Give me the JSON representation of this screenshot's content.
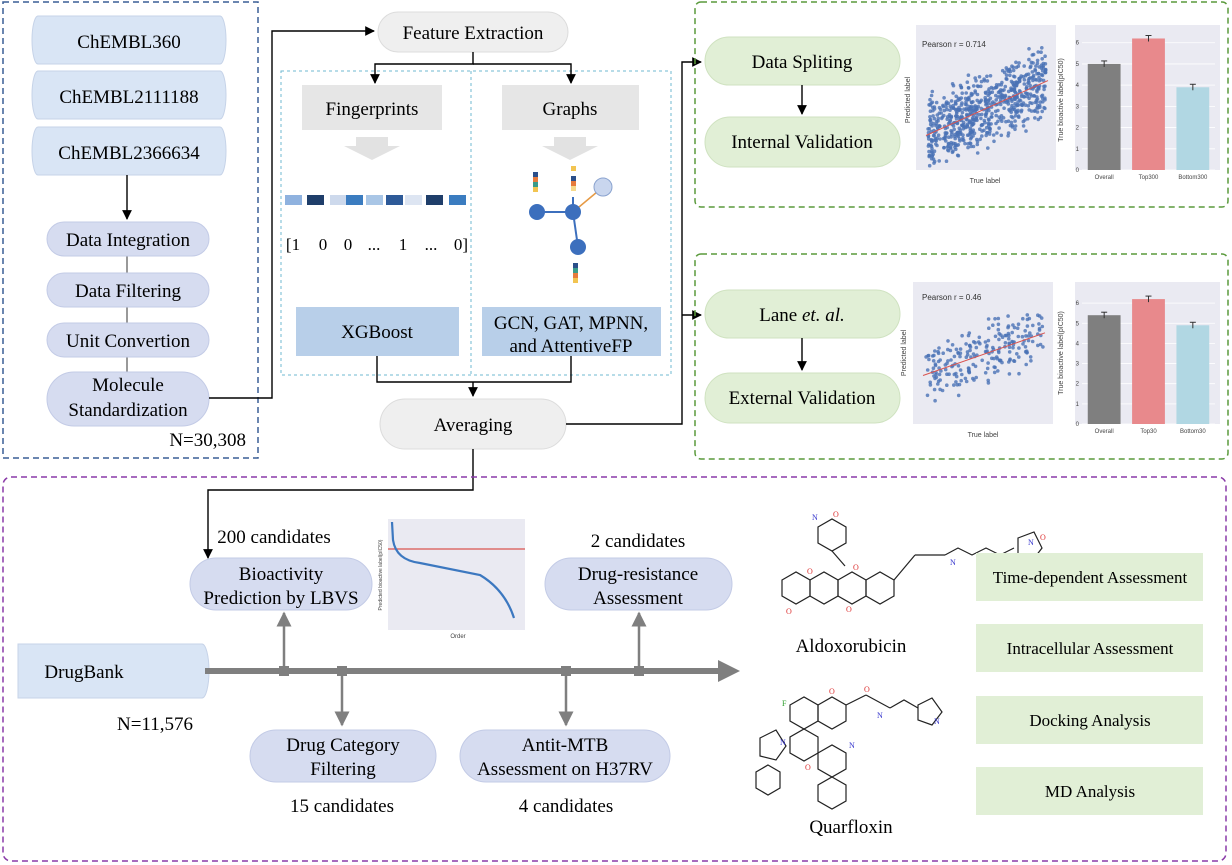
{
  "sources": {
    "items": [
      "ChEMBL360",
      "ChEMBL2111188",
      "ChEMBL2366634"
    ],
    "steps": [
      "Data Integration",
      "Data Filtering",
      "Unit Convertion",
      "Molecule",
      "Standardization"
    ],
    "count": "N=30,308"
  },
  "features": {
    "title": "Feature Extraction",
    "fingerprints": "Fingerprints",
    "graphs": "Graphs",
    "vector": [
      "[1",
      "0",
      "0",
      "...",
      "1",
      "...",
      "0]"
    ],
    "model_fp": "XGBoost",
    "model_graph_line1": "GCN, GAT, MPNN,",
    "model_graph_line2": "and AttentiveFP",
    "averaging": "Averaging"
  },
  "internal": {
    "split": "Data Spliting",
    "validation": "Internal Validation",
    "pearson": "Pearson r = 0.714",
    "scatter_xlabel": "True label",
    "scatter_ylabel": "Predicted label",
    "bar_ylabel": "True bioactive label(pIC50)",
    "bar_categories": [
      "Overall",
      "Top300",
      "Bottom300"
    ]
  },
  "external": {
    "dataset_prefix": "Lane ",
    "dataset_italic": "et. al.",
    "validation": "External Validation",
    "pearson": "Pearson r = 0.46",
    "scatter_xlabel": "True label",
    "scatter_ylabel": "Predicted label",
    "bar_ylabel": "True bioactive label(pIC50)",
    "bar_categories": [
      "Overall",
      "Top30",
      "Bottom30"
    ]
  },
  "screening": {
    "source": "DrugBank",
    "source_count": "N=11,576",
    "bio_count": "200 candidates",
    "bio_line1": "Bioactivity",
    "bio_line2": "Prediction by LBVS",
    "dc_line1": "Drug Category",
    "dc_line2": "Filtering",
    "dc_count": "15 candidates",
    "mtb_line1": "Antit-MTB",
    "mtb_line2": "Assessment on H37RV",
    "mtb_count": "4 candidates",
    "dr_count": "2 candidates",
    "dr_line1": "Drug-resistance",
    "dr_line2": "Assessment",
    "drug1": "Aldoxorubicin",
    "drug2": "Quarfloxin",
    "assessments": [
      "Time-dependent Assessment",
      "Intracellular Assessment",
      "Docking Analysis",
      "MD Analysis"
    ],
    "rank_xlabel": "Order",
    "rank_ylabel": "Predicted bioactive label(pIC50)"
  },
  "colors": {
    "blue_frame": "#3a5f95",
    "green_frame": "#5a9a3c",
    "purple_frame": "#8a3aa8",
    "pill_blue": "#dde6f5",
    "pill_green": "#e1efd6",
    "arrow_gray": "#7f7f7f"
  },
  "chart_data": [
    {
      "type": "bar",
      "categories": [
        "Overall",
        "Top300",
        "Bottom300"
      ],
      "values": [
        5.0,
        6.2,
        3.9
      ],
      "ylim": [
        0,
        6.6
      ],
      "ylabel": "True bioactive label(pIC50)"
    },
    {
      "type": "bar",
      "categories": [
        "Overall",
        "Top30",
        "Bottom30"
      ],
      "values": [
        5.4,
        6.2,
        4.9
      ],
      "ylim": [
        0,
        6.8
      ],
      "ylabel": "True bioactive label(pIC50)"
    },
    {
      "type": "scatter",
      "title": "Pearson r = 0.714",
      "xlabel": "True label",
      "ylabel": "Predicted label",
      "xlim": [
        2,
        8
      ],
      "ylim": [
        2,
        8
      ]
    },
    {
      "type": "scatter",
      "title": "Pearson r = 0.46",
      "xlabel": "True label",
      "ylabel": "Predicted label",
      "xlim": [
        6.5,
        9.2
      ],
      "ylim": [
        3,
        9
      ]
    }
  ]
}
